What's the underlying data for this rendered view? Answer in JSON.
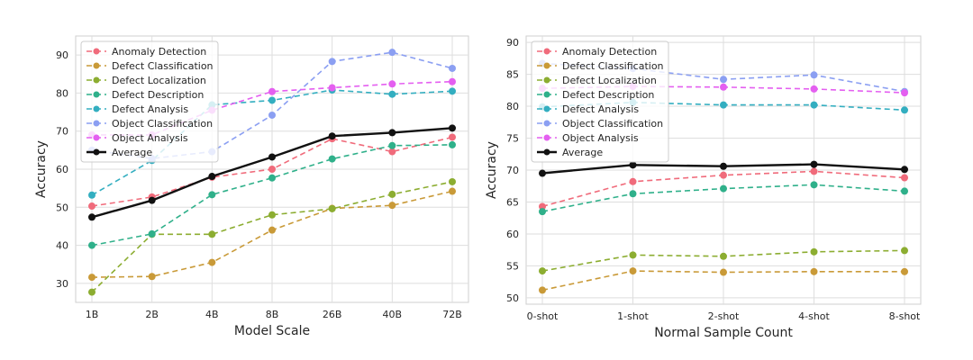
{
  "chart_data": [
    {
      "type": "line",
      "xlabel": "Model Scale",
      "ylabel": "Accuracy",
      "categories": [
        "1B",
        "2B",
        "4B",
        "8B",
        "26B",
        "40B",
        "72B"
      ],
      "ylim": [
        25,
        95
      ],
      "yticks": [
        30,
        40,
        50,
        60,
        70,
        80,
        90
      ],
      "grid": true,
      "legend_position": "top-left",
      "series": [
        {
          "name": "Anomaly Detection",
          "color": "#f06b7b",
          "dash": true,
          "values": [
            50.3,
            52.7,
            57.9,
            60.0,
            68.0,
            64.6,
            68.4
          ]
        },
        {
          "name": "Defect Classification",
          "color": "#c99a38",
          "dash": true,
          "values": [
            31.6,
            31.8,
            35.5,
            44.0,
            49.7,
            50.5,
            54.2
          ]
        },
        {
          "name": "Defect Localization",
          "color": "#8cad31",
          "dash": true,
          "values": [
            27.7,
            42.9,
            42.9,
            48.0,
            49.6,
            53.4,
            56.7
          ]
        },
        {
          "name": "Defect Description",
          "color": "#2fb08a",
          "dash": true,
          "values": [
            40.0,
            43.0,
            53.3,
            57.7,
            62.7,
            66.2,
            66.4
          ]
        },
        {
          "name": "Defect Analysis",
          "color": "#33aec0",
          "dash": true,
          "values": [
            53.2,
            62.3,
            76.9,
            78.1,
            80.8,
            79.7,
            80.5
          ]
        },
        {
          "name": "Object Classification",
          "color": "#8b9ff2",
          "dash": true,
          "values": [
            65.0,
            62.8,
            64.6,
            74.2,
            88.3,
            90.7,
            86.5
          ]
        },
        {
          "name": "Object Analysis",
          "color": "#e45ff0",
          "dash": true,
          "values": [
            69.0,
            69.0,
            75.5,
            80.4,
            81.4,
            82.4,
            83.0
          ]
        },
        {
          "name": "Average",
          "color": "#111111",
          "dash": false,
          "values": [
            47.4,
            51.8,
            58.1,
            63.2,
            68.7,
            69.6,
            70.8
          ]
        }
      ]
    },
    {
      "type": "line",
      "xlabel": "Normal Sample Count",
      "ylabel": "Accuracy",
      "categories": [
        "0-shot",
        "1-shot",
        "2-shot",
        "4-shot",
        "8-shot"
      ],
      "ylim": [
        49,
        91
      ],
      "yticks": [
        50,
        55,
        60,
        65,
        70,
        75,
        80,
        85,
        90
      ],
      "grid": true,
      "legend_position": "top-left",
      "series": [
        {
          "name": "Anomaly Detection",
          "color": "#f06b7b",
          "dash": true,
          "values": [
            64.3,
            68.2,
            69.2,
            69.8,
            68.8
          ]
        },
        {
          "name": "Defect Classification",
          "color": "#c99a38",
          "dash": true,
          "values": [
            51.2,
            54.2,
            54.0,
            54.1,
            54.1
          ]
        },
        {
          "name": "Defect Localization",
          "color": "#8cad31",
          "dash": true,
          "values": [
            54.2,
            56.7,
            56.5,
            57.2,
            57.4
          ]
        },
        {
          "name": "Defect Description",
          "color": "#2fb08a",
          "dash": true,
          "values": [
            63.5,
            66.3,
            67.1,
            67.7,
            66.7
          ]
        },
        {
          "name": "Defect Analysis",
          "color": "#33aec0",
          "dash": true,
          "values": [
            79.9,
            80.6,
            80.2,
            80.2,
            79.4
          ]
        },
        {
          "name": "Object Classification",
          "color": "#8b9ff2",
          "dash": true,
          "values": [
            86.7,
            85.9,
            84.2,
            84.9,
            82.3
          ]
        },
        {
          "name": "Object Analysis",
          "color": "#e45ff0",
          "dash": true,
          "values": [
            82.8,
            83.1,
            83.0,
            82.7,
            82.1
          ]
        },
        {
          "name": "Average",
          "color": "#111111",
          "dash": false,
          "values": [
            69.5,
            70.8,
            70.6,
            70.9,
            70.1
          ]
        }
      ]
    }
  ]
}
